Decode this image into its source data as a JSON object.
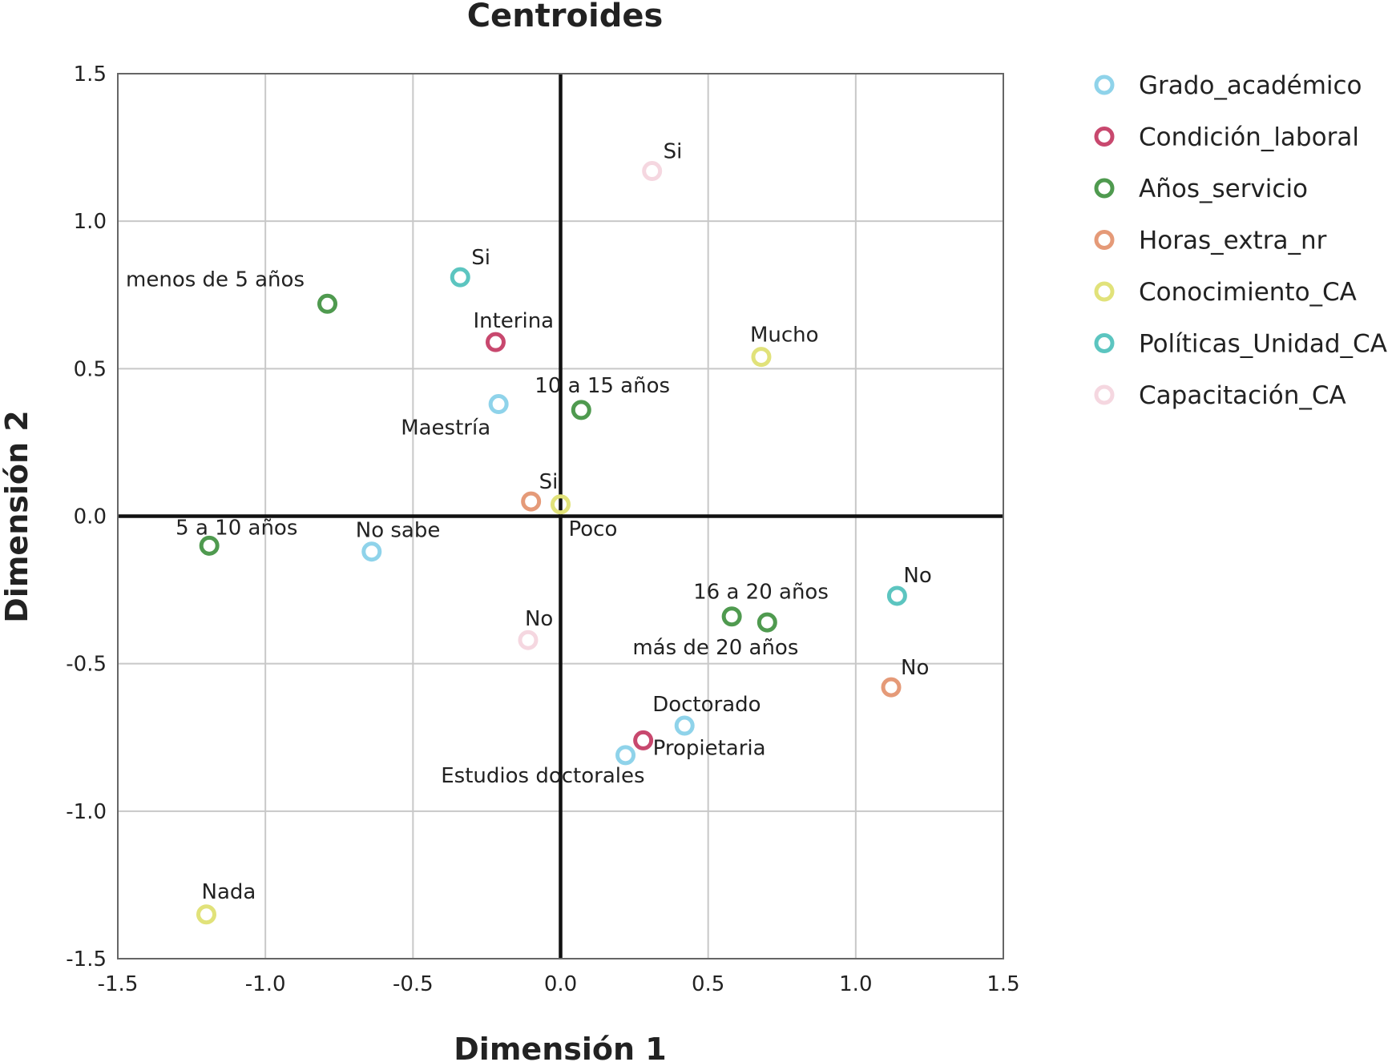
{
  "chart_data": {
    "type": "scatter",
    "title": "Centroides",
    "xlabel": "Dimensión 1",
    "ylabel": "Dimensión 2",
    "xlim": [
      -1.5,
      1.5
    ],
    "ylim": [
      -1.5,
      1.5
    ],
    "x_ticks": [
      "-1.5",
      "-1.0",
      "-0.5",
      "0.0",
      "0.5",
      "1.0",
      "1.5"
    ],
    "y_ticks": [
      "1.5",
      "1.0",
      "0.5",
      "0.0",
      "-0.5",
      "-1.0",
      "-1.5"
    ],
    "grid": true,
    "legend_position": "right",
    "series": [
      {
        "name": "Grado_académico",
        "color": "#8fd3ea",
        "points": [
          {
            "label": "Maestría",
            "x": -0.21,
            "y": 0.38
          },
          {
            "label": "No sabe",
            "x": -0.64,
            "y": -0.12
          },
          {
            "label": "Doctorado",
            "x": 0.42,
            "y": -0.71
          },
          {
            "label": "Estudios doctorales",
            "x": 0.22,
            "y": -0.81
          }
        ]
      },
      {
        "name": "Condición_laboral",
        "color": "#c8486e",
        "points": [
          {
            "label": "Interina",
            "x": -0.22,
            "y": 0.59
          },
          {
            "label": "Propietaria",
            "x": 0.28,
            "y": -0.76
          }
        ]
      },
      {
        "name": "Años_servicio",
        "color": "#4f9a4f",
        "points": [
          {
            "label": "menos de 5 años",
            "x": -0.79,
            "y": 0.72
          },
          {
            "label": "10 a 15 años",
            "x": 0.07,
            "y": 0.36
          },
          {
            "label": "5 a 10 años",
            "x": -1.19,
            "y": -0.1
          },
          {
            "label": "16 a 20 años",
            "x": 0.58,
            "y": -0.34
          },
          {
            "label": "más de 20 años",
            "x": 0.7,
            "y": -0.36
          }
        ]
      },
      {
        "name": "Horas_extra_nr",
        "color": "#e59a78",
        "points": [
          {
            "label": "Si",
            "x": -0.1,
            "y": 0.05
          },
          {
            "label": "No",
            "x": 1.12,
            "y": -0.58
          }
        ]
      },
      {
        "name": "Conocimiento_CA",
        "color": "#e1e27a",
        "points": [
          {
            "label": "Mucho",
            "x": 0.68,
            "y": 0.54
          },
          {
            "label": "Poco",
            "x": 0.0,
            "y": 0.04
          },
          {
            "label": "Nada",
            "x": -1.2,
            "y": -1.35
          }
        ]
      },
      {
        "name": "Políticas_Unidad_CA",
        "color": "#5cc5c0",
        "points": [
          {
            "label": "Si",
            "x": -0.34,
            "y": 0.81
          },
          {
            "label": "No",
            "x": 1.14,
            "y": -0.27
          }
        ]
      },
      {
        "name": "Capacitación_CA",
        "color": "#f5d7e0",
        "points": [
          {
            "label": "Si",
            "x": 0.31,
            "y": 1.17
          },
          {
            "label": "No",
            "x": -0.11,
            "y": -0.42
          }
        ]
      }
    ]
  }
}
